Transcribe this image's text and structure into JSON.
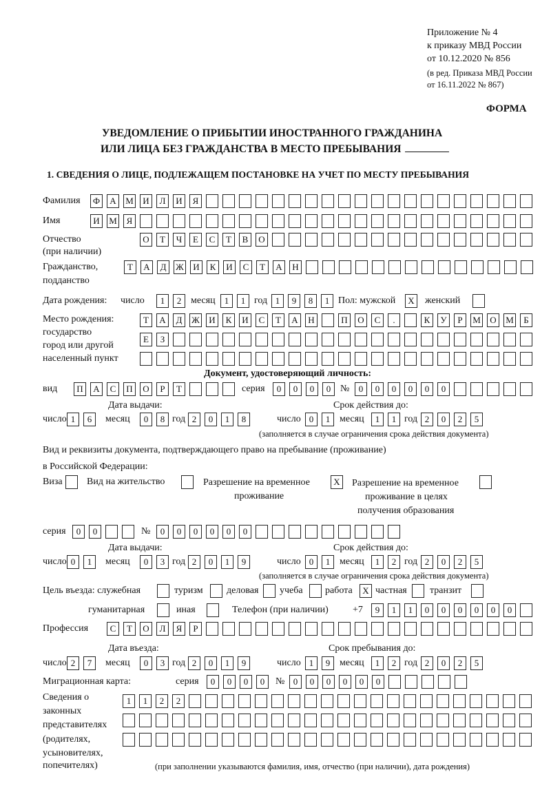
{
  "header": {
    "appendix": "Приложение № 4",
    "order_line": "к приказу МВД России",
    "order_date": "от 10.12.2020 № 856",
    "amend_line1": "(в ред. Приказа МВД России",
    "amend_line2": "от 16.11.2022 № 867)",
    "form_label": "ФОРМА"
  },
  "title": {
    "line1": "УВЕДОМЛЕНИЕ О ПРИБЫТИИ ИНОСТРАННОГО ГРАЖДАНИНА",
    "line2": "ИЛИ ЛИЦА БЕЗ ГРАЖДАНСТВА В МЕСТО ПРЕБЫВАНИЯ"
  },
  "section1": {
    "heading": "1. СВЕДЕНИЯ О ЛИЦЕ, ПОДЛЕЖАЩЕМ ПОСТАНОВКЕ НА УЧЕТ ПО МЕСТУ ПРЕБЫВАНИЯ",
    "labels": {
      "surname": "Фамилия",
      "name": "Имя",
      "patronymic": "Отчество",
      "patronymic_note": "(при наличии)",
      "citizenship1": "Гражданство,",
      "citizenship2": "подданство",
      "birth_date": "Дата рождения:",
      "day": "число",
      "month": "месяц",
      "year": "год",
      "sex_male": "Пол: мужской",
      "sex_female": "женский",
      "birthplace1": "Место рождения:",
      "birthplace2": "государство",
      "birthplace3": "город или другой",
      "birthplace4": "населенный пункт",
      "id_doc_heading": "Документ, удостоверяющий личность:",
      "doc_type": "вид",
      "series": "серия",
      "number": "№",
      "issue_date": "Дата выдачи:",
      "valid_until": "Срок действия до:",
      "validity_note": "(заполняется в случае ограничения срока действия документа)",
      "permit_heading1": "Вид и реквизиты документа, подтверждающего право на пребывание (проживание)",
      "permit_heading2": "в Российской Федерации:",
      "visa": "Виза",
      "residence_permit": "Вид на жительство",
      "temp_residence1": "Разрешение на временное",
      "temp_residence2": "проживание",
      "temp_edu1": "Разрешение на временное",
      "temp_edu2": "проживание в целях",
      "temp_edu3": "получения образования",
      "purpose": "Цель въезда: служебная",
      "tourism": "туризм",
      "business": "деловая",
      "study": "учеба",
      "work": "работа",
      "private": "частная",
      "transit": "транзит",
      "humanitarian": "гуманитарная",
      "other": "иная",
      "phone": "Телефон (при наличии)",
      "phone_prefix": "+7",
      "profession": "Профессия",
      "entry_date": "Дата въезда:",
      "stay_until": "Срок пребывания до:",
      "migration_card": "Миграционная карта:",
      "reps1": "Сведения о",
      "reps2": "законных",
      "reps3": "представителях",
      "reps4": "(родителях,",
      "reps5": "усыновителях,",
      "reps6": "попечителях)",
      "reps_note": "(при заполнении указываются фамилия, имя, отчество (при наличии), дата рождения)"
    },
    "fields": {
      "surname": [
        "Ф",
        "А",
        "М",
        "И",
        "Л",
        "И",
        "Я"
      ],
      "name": [
        "И",
        "М",
        "Я"
      ],
      "patronymic": [
        "О",
        "Т",
        "Ч",
        "Е",
        "С",
        "Т",
        "В",
        "О"
      ],
      "citizenship": [
        "Т",
        "А",
        "Д",
        "Ж",
        "И",
        "К",
        "И",
        "С",
        "Т",
        "А",
        "Н"
      ],
      "birth_day": [
        "1",
        "2"
      ],
      "birth_month": [
        "1",
        "1"
      ],
      "birth_year": [
        "1",
        "9",
        "8",
        "1"
      ],
      "sex_male": "X",
      "sex_female": "",
      "birthplace_row1": [
        "Т",
        "А",
        "Д",
        "Ж",
        "И",
        "К",
        "И",
        "С",
        "Т",
        "А",
        "Н",
        "",
        "П",
        "О",
        "С",
        ".",
        "",
        "К",
        "У",
        "Р",
        "М",
        "О",
        "М",
        "Б"
      ],
      "birthplace_row2": [
        "Е",
        "З"
      ],
      "birthplace_row3": [],
      "doc_type": [
        "П",
        "А",
        "С",
        "П",
        "О",
        "Р",
        "Т"
      ],
      "doc_series": [
        "0",
        "0",
        "0",
        "0"
      ],
      "doc_number": [
        "0",
        "0",
        "0",
        "0",
        "0",
        "0"
      ],
      "doc_issue_day": [
        "1",
        "6"
      ],
      "doc_issue_month": [
        "0",
        "8"
      ],
      "doc_issue_year": [
        "2",
        "0",
        "1",
        "8"
      ],
      "doc_valid_day": [
        "0",
        "1"
      ],
      "doc_valid_month": [
        "1",
        "1"
      ],
      "doc_valid_year": [
        "2",
        "0",
        "2",
        "5"
      ],
      "visa": "",
      "residence_permit": "",
      "temp_residence": "X",
      "temp_edu": "",
      "permit_series": [
        "0",
        "0"
      ],
      "permit_number": [
        "0",
        "0",
        "0",
        "0",
        "0",
        "0"
      ],
      "permit_issue_day": [
        "0",
        "1"
      ],
      "permit_issue_month": [
        "0",
        "3"
      ],
      "permit_issue_year": [
        "2",
        "0",
        "1",
        "9"
      ],
      "permit_valid_day": [
        "0",
        "1"
      ],
      "permit_valid_month": [
        "1",
        "2"
      ],
      "permit_valid_year": [
        "2",
        "0",
        "2",
        "5"
      ],
      "purpose_official": "",
      "purpose_tourism": "",
      "purpose_business": "",
      "purpose_study": "",
      "purpose_work": "X",
      "purpose_private": "",
      "purpose_transit": "",
      "purpose_humanitarian": "",
      "purpose_other": "",
      "phone": [
        "9",
        "1",
        "1",
        "0",
        "0",
        "0",
        "0",
        "0",
        "0"
      ],
      "profession": [
        "С",
        "Т",
        "О",
        "Л",
        "Я",
        "Р"
      ],
      "entry_day": [
        "2",
        "7"
      ],
      "entry_month": [
        "0",
        "3"
      ],
      "entry_year": [
        "2",
        "0",
        "1",
        "9"
      ],
      "stay_day": [
        "1",
        "9"
      ],
      "stay_month": [
        "1",
        "2"
      ],
      "stay_year": [
        "2",
        "0",
        "2",
        "5"
      ],
      "mig_series": [
        "0",
        "0",
        "0",
        "0"
      ],
      "mig_number": [
        "0",
        "0",
        "0",
        "0",
        "0",
        "0"
      ],
      "reps_row1": [
        "1",
        "1",
        "2",
        "2"
      ],
      "reps_row2": [],
      "reps_row3": []
    }
  }
}
